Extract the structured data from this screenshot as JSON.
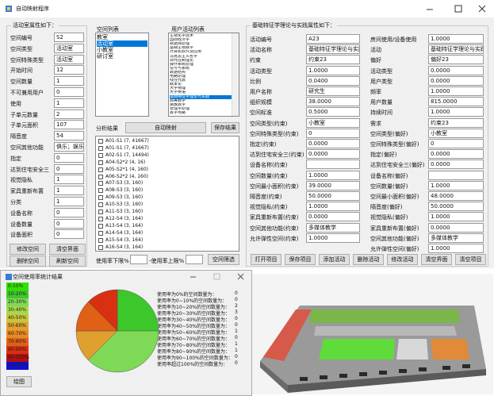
{
  "main_window": {
    "title": "自动映射程序"
  },
  "room_panel": {
    "title": "活动室属性如下：",
    "fields": [
      {
        "label": "空间编号",
        "value": "S2"
      },
      {
        "label": "空间类型",
        "value": "活动室"
      },
      {
        "label": "空间特殊类型",
        "value": "活动室"
      },
      {
        "label": "开始时间",
        "value": "12"
      },
      {
        "label": "空间数量",
        "value": "1"
      },
      {
        "label": "不可兼用用户",
        "value": "0"
      },
      {
        "label": "使用",
        "value": "1"
      },
      {
        "label": "子单元数量",
        "value": "2"
      },
      {
        "label": "子单元面积",
        "value": "107"
      },
      {
        "label": "隔音度",
        "value": "54"
      },
      {
        "label": "空间其他功能",
        "value": "俱乐；娱乐"
      },
      {
        "label": "指定",
        "value": "0"
      },
      {
        "label": "达到住宅安全三",
        "value": "0"
      },
      {
        "label": "视觉隐私",
        "value": "1"
      },
      {
        "label": "家具重新布置",
        "value": "1"
      },
      {
        "label": "分类",
        "value": "1"
      },
      {
        "label": "设备名称",
        "value": "0"
      },
      {
        "label": "设备数量",
        "value": "0"
      },
      {
        "label": "设备面积",
        "value": "0"
      }
    ],
    "buttons": [
      "修改空间",
      "清空界面",
      "删除空间",
      "刷新空间"
    ]
  },
  "space_list": {
    "label": "空间列表",
    "items": [
      "教室",
      "活动室",
      "小教室",
      "研讨室"
    ],
    "selected": 1
  },
  "activity_list": {
    "label": "用户活动列表",
    "items": [
      "生物化学技术",
      "国际经济学",
      "数据库原理",
      "基础生物数学",
      "计算机软件及应用",
      "马克思主义哲学",
      "现代控制理论",
      "操作系统原理",
      "信号与系统",
      "数据结构",
      "电路原理",
      "线性代数",
      "概率论",
      "大学物理",
      "大学英语",
      "基础特征学理论与实践",
      "高等数学",
      "离散数学",
      "管理学原理",
      "数字电路"
    ],
    "selected": 15
  },
  "analysis": {
    "label": "分析结果",
    "map_button": "自动映射",
    "save_button": "保存结果",
    "results": [
      "A01-S1 (7, 41667)",
      "A01-S1 (7, 41667)",
      "A02-S1 (7, 14494)",
      "A04-S2*2 (4, 16)",
      "A05-S2*1 (4, 160)",
      "A06-S2*2 (4, 160)",
      "A07-S3 (3, 160)",
      "A08-S3 (3, 160)",
      "A09-S3 (3, 160)",
      "A10-S3 (3, 160)",
      "A11-S3 (3, 160)",
      "A12-S4 (3, 164)",
      "A13-S4 (3, 164)",
      "A14-S4 (3, 164)",
      "A15-S4 (3, 164)",
      "A16-S4 (3, 164)"
    ]
  },
  "filter": {
    "lower_label": "使用率下限%",
    "upper_label": "-使用率上限%",
    "button": "空间筛选"
  },
  "activity_panel": {
    "title": "基础特征学理论与实践属性如下：",
    "left_fields": [
      {
        "label": "活动编号",
        "value": "A23"
      },
      {
        "label": "活动名称",
        "value": "基础特征学理论与实践"
      },
      {
        "label": "约束",
        "value": "约束23"
      },
      {
        "label": "活动类型",
        "value": "1.0000"
      },
      {
        "label": "比例",
        "value": "0.0400"
      },
      {
        "label": "用户名称",
        "value": "研究生"
      },
      {
        "label": "组织规模",
        "value": "38.0000"
      },
      {
        "label": "空间标准",
        "value": "0.5000"
      },
      {
        "label": "空间类型(约束)",
        "value": "小教室"
      },
      {
        "label": "空间特殊类型(约束)",
        "value": "0"
      },
      {
        "label": "指定(约束)",
        "value": "0.0000"
      },
      {
        "label": "达到住宅安全三(约束)",
        "value": "0.0000"
      },
      {
        "label": "设备名称(约束)"
      },
      {
        "label": "空间数量(约束)",
        "value": "1.0000"
      },
      {
        "label": "空间最小面积(约束)",
        "value": "39.0000"
      },
      {
        "label": "隔音度(约束)",
        "value": "50.0000"
      },
      {
        "label": "视觉隐私(约束)",
        "value": "1.0000"
      },
      {
        "label": "家具重新布置(约束)",
        "value": "0.0000"
      },
      {
        "label": "空间其他功能(约束)",
        "value": "多媒体教学"
      },
      {
        "label": "允许弹性空间(约束)",
        "value": "1.0000"
      }
    ],
    "right_fields": [
      {
        "label": "房间使用/设备使用",
        "value": "1.0000"
      },
      {
        "label": "活动",
        "value": "基础特征学理论与实践"
      },
      {
        "label": "偏好",
        "value": "偏好23"
      },
      {
        "label": "活动类型",
        "value": "0.0000"
      },
      {
        "label": "用户类型",
        "value": "0.0000"
      },
      {
        "label": "频率",
        "value": "1.0000"
      },
      {
        "label": "用户数量",
        "value": "815.0000"
      },
      {
        "label": "持续时间",
        "value": "1.0000"
      },
      {
        "label": "需求",
        "value": "约束23"
      },
      {
        "label": "空间类型(偏好)",
        "value": "小教室"
      },
      {
        "label": "空间特殊类型(偏好)",
        "value": "0"
      },
      {
        "label": "指定(偏好)",
        "value": "0.0000"
      },
      {
        "label": "达到住宅安全三(偏好)",
        "value": "0.0000"
      },
      {
        "label": "设备名称(偏好)"
      },
      {
        "label": "空间数量(偏好)",
        "value": "1.0000"
      },
      {
        "label": "空间最小面积(偏好)",
        "value": "48.0000"
      },
      {
        "label": "隔音度(偏好)",
        "value": "50.0000"
      },
      {
        "label": "视觉隐私(偏好)",
        "value": "1.0000"
      },
      {
        "label": "家具重新布置(偏好)",
        "value": "0.0000"
      },
      {
        "label": "空间其他功能(偏好)",
        "value": "多媒体教学"
      },
      {
        "label": "允许弹性空间(偏好)",
        "value": "1.0000"
      }
    ],
    "buttons": [
      "打开项目",
      "保存项目",
      "添加活动",
      "删除活动",
      "修改活动",
      "清空界面",
      "清空项目"
    ]
  },
  "stats_window": {
    "title": "空间使用率统计结果",
    "legend": [
      {
        "label": "0-10%",
        "color": "#33e000"
      },
      {
        "label": "10-20%",
        "color": "#3cc82a"
      },
      {
        "label": "20-30%",
        "color": "#7ed957"
      },
      {
        "label": "30-40%",
        "color": "#a8d84a"
      },
      {
        "label": "40-50%",
        "color": "#c6c63a"
      },
      {
        "label": "50-60%",
        "color": "#e0a030"
      },
      {
        "label": "60-70%",
        "color": "#e88a22"
      },
      {
        "label": "70-80%",
        "color": "#e06018"
      },
      {
        "label": "80-90%",
        "color": "#d83010"
      },
      {
        "label": "90-100%",
        "color": "#b01010"
      },
      {
        ">100%": null,
        "label": ">100%",
        "color": "#1010d0"
      }
    ],
    "counts": [
      {
        "label": "使用率为0%的空间数量为：",
        "value": 0,
        "color": "#cccccc"
      },
      {
        "label": "使用率为0~10%的空间数量为：",
        "value": 0,
        "color": "#33e000"
      },
      {
        "label": "使用率为10~20%的空间数量为：",
        "value": 2,
        "color": "#3cc82a"
      },
      {
        "label": "使用率为20~30%的空间数量为：",
        "value": 3,
        "color": "#7ed957"
      },
      {
        "label": "使用率为30~40%的空间数量为：",
        "value": 0,
        "color": "#a8d84a"
      },
      {
        "label": "使用率为40~50%的空间数量为：",
        "value": 0,
        "color": "#c6c63a"
      },
      {
        "label": "使用率为50~60%的空间数量为：",
        "value": 1,
        "color": "#e0a030"
      },
      {
        "label": "使用率为60~70%的空间数量为：",
        "value": 0,
        "color": "#e88a22"
      },
      {
        "label": "使用率为70~80%的空间数量为：",
        "value": 1,
        "color": "#e06018"
      },
      {
        "label": "使用率为80~90%的空间数量为：",
        "value": 1,
        "color": "#d83010"
      },
      {
        "label": "使用率为90~100%的空间数量为：",
        "value": 0,
        "color": "#b01010"
      },
      {
        "label": "使用率超过100%的空间数量为：",
        "value": 0,
        "color": "#1010d0"
      }
    ],
    "draw_button": "绘图"
  }
}
